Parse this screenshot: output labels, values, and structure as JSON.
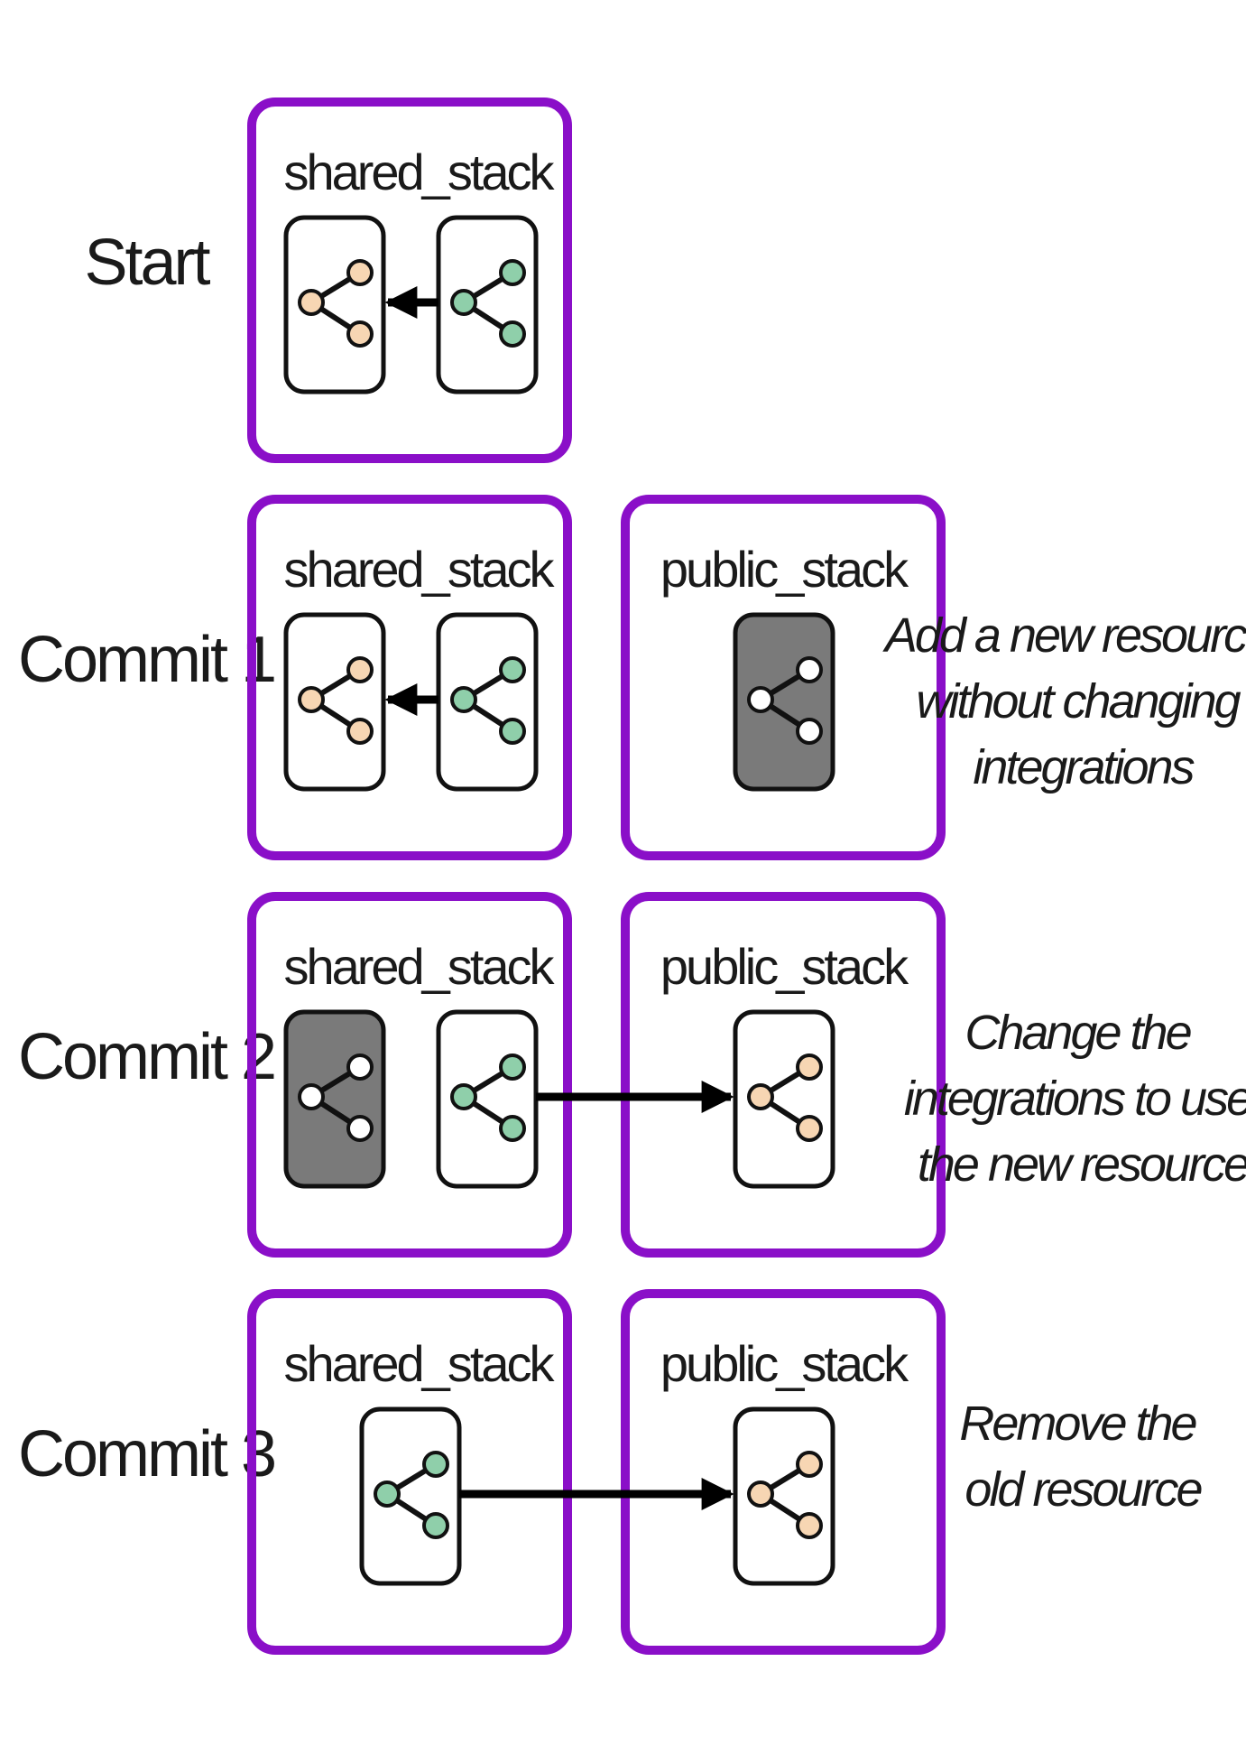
{
  "colors": {
    "stack_border": "#8a0fc8",
    "node_outline": "#111111",
    "shared_resource_node": "#f7d6b3",
    "integration_node": "#8fcfaa",
    "new_resource_fill": "#7a7a7a",
    "new_resource_node": "#ffffff",
    "arrow": "#000000"
  },
  "icon_names": [
    "share-icon"
  ],
  "rows": [
    {
      "label": "Start",
      "shared_title": "shared_stack",
      "public_title": "",
      "note_lines": []
    },
    {
      "label": "Commit 1",
      "shared_title": "shared_stack",
      "public_title": "public_stack",
      "note_lines": [
        "Add a new resource",
        "without changing",
        "integrations"
      ]
    },
    {
      "label": "Commit 2",
      "shared_title": "shared_stack",
      "public_title": "public_stack",
      "note_lines": [
        "Change the",
        "integrations to use",
        "the new resource"
      ]
    },
    {
      "label": "Commit 3",
      "shared_title": "shared_stack",
      "public_title": "public_stack",
      "note_lines": [
        "Remove the",
        "old resource"
      ]
    }
  ]
}
